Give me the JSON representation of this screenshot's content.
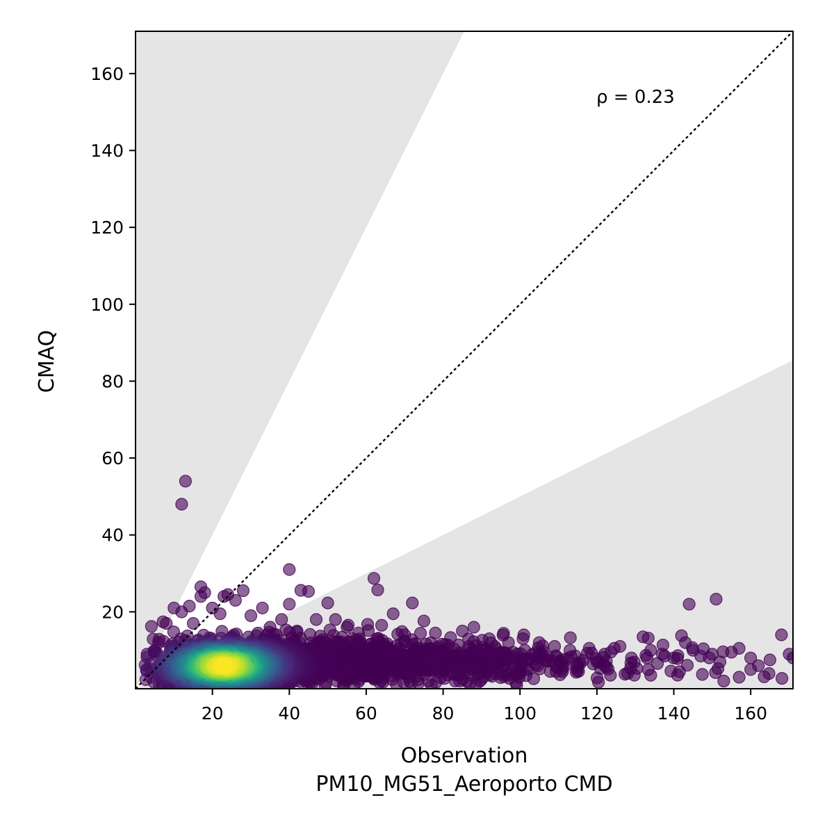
{
  "chart_data": {
    "type": "scatter",
    "title": "",
    "xlabel": "Observation",
    "xlabel_sub": "PM10_MG51_Aeroporto CMD",
    "ylabel": "CMAQ",
    "xlim": [
      0,
      171
    ],
    "ylim": [
      0,
      171
    ],
    "xticks": [
      "20",
      "40",
      "60",
      "80",
      "100",
      "120",
      "140",
      "160"
    ],
    "yticks": [
      "20",
      "40",
      "60",
      "80",
      "100",
      "120",
      "140",
      "160"
    ],
    "xtick_values": [
      20,
      40,
      60,
      80,
      100,
      120,
      140,
      160
    ],
    "ytick_values": [
      20,
      40,
      60,
      80,
      100,
      120,
      140,
      160
    ],
    "annotation": "ρ = 0.23",
    "grid": false,
    "reference_line": {
      "slope": 1,
      "style": "dotted",
      "color": "#000000"
    },
    "shaded_bands": [
      {
        "description": "above 2:1 line",
        "slope": 2,
        "color": "#e5e5e5"
      },
      {
        "description": "below 1:2 line",
        "slope": 0.5,
        "color": "#e5e5e5"
      }
    ],
    "colormap": "viridis",
    "points": [
      [
        13,
        54
      ],
      [
        12,
        48
      ],
      [
        40,
        31
      ],
      [
        62,
        28.7
      ],
      [
        63,
        25.7
      ],
      [
        43,
        25.6
      ],
      [
        45,
        25.3
      ],
      [
        17,
        26.5
      ],
      [
        18,
        25
      ],
      [
        17,
        24
      ],
      [
        24,
        24.5
      ],
      [
        23,
        24
      ],
      [
        26,
        23
      ],
      [
        28,
        25.5
      ],
      [
        72,
        22.3
      ],
      [
        50,
        22.3
      ],
      [
        40,
        22
      ],
      [
        144,
        22
      ],
      [
        151,
        23.3
      ],
      [
        67,
        19.5
      ],
      [
        75,
        17.6
      ],
      [
        52,
        18
      ],
      [
        33,
        21
      ],
      [
        10,
        21
      ],
      [
        12,
        20
      ],
      [
        14,
        21.5
      ],
      [
        20,
        21
      ],
      [
        22,
        19.5
      ],
      [
        30,
        19
      ],
      [
        38,
        18
      ],
      [
        15,
        17
      ],
      [
        8,
        17
      ],
      [
        35,
        16
      ],
      [
        42,
        15
      ],
      [
        47,
        18
      ],
      [
        55,
        16
      ],
      [
        64,
        16.5
      ],
      [
        58,
        14.5
      ],
      [
        70,
        14
      ],
      [
        78,
        14.5
      ],
      [
        85,
        15
      ],
      [
        88,
        16
      ],
      [
        92,
        13
      ],
      [
        97,
        12
      ],
      [
        101,
        14
      ],
      [
        105,
        12
      ],
      [
        109,
        11
      ],
      [
        113,
        10
      ],
      [
        118,
        10.5
      ],
      [
        122,
        9
      ],
      [
        126,
        11
      ],
      [
        129,
        8
      ],
      [
        132,
        13.5
      ],
      [
        134,
        10
      ],
      [
        137,
        9
      ],
      [
        140,
        8
      ],
      [
        142,
        13.8
      ],
      [
        143,
        12
      ],
      [
        145,
        10
      ],
      [
        147,
        8.5
      ],
      [
        150,
        9
      ],
      [
        152,
        7
      ],
      [
        155,
        9.5
      ],
      [
        157,
        10.5
      ],
      [
        160,
        8
      ],
      [
        162,
        6
      ],
      [
        165,
        7.5
      ],
      [
        168,
        14
      ],
      [
        170,
        9
      ],
      [
        171,
        8
      ],
      [
        157,
        3
      ],
      [
        160,
        5
      ],
      [
        153,
        2
      ],
      [
        134,
        3.5
      ],
      [
        128,
        4
      ],
      [
        120,
        7
      ],
      [
        115,
        6
      ],
      [
        100,
        4
      ],
      [
        96,
        6
      ],
      [
        90,
        5
      ],
      [
        84,
        7
      ],
      [
        80,
        5
      ],
      [
        74,
        7
      ],
      [
        68,
        5
      ],
      [
        62,
        3
      ],
      [
        56,
        4
      ],
      [
        50,
        6
      ],
      [
        5,
        9
      ],
      [
        6,
        12
      ],
      [
        7,
        6
      ],
      [
        4,
        3
      ],
      [
        3,
        9
      ]
    ],
    "cluster": {
      "center_x": 23,
      "center_y": 6,
      "count": 2600
    }
  }
}
